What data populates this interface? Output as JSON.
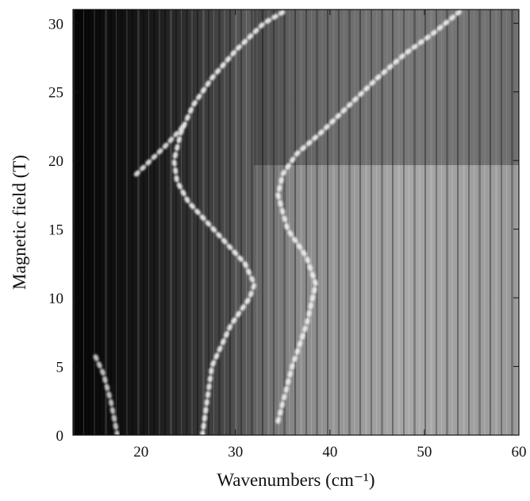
{
  "chart_data": {
    "type": "intensity-map",
    "x_label": "Wavenumbers (cm⁻¹)",
    "y_label": "Magnetic field (T)",
    "xlim": [
      12.8,
      60
    ],
    "xticks": [
      20,
      30,
      40,
      50,
      60
    ],
    "ylim": [
      0,
      31
    ],
    "yticks": [
      0,
      5,
      10,
      15,
      20,
      25,
      30
    ],
    "series": [
      {
        "color": "#f2f2f2",
        "x": [
          26.5,
          27.5,
          29.5,
          31.5,
          32,
          31,
          29,
          27,
          25,
          23.8,
          23.5,
          24.2,
          25.5,
          27.5,
          30,
          33,
          35.5
        ],
        "y": [
          0,
          5,
          8,
          10,
          11,
          12.5,
          14,
          15.5,
          17,
          18.5,
          20,
          22,
          24,
          26,
          28,
          30,
          31
        ]
      },
      {
        "color": "#f2f2f2",
        "x": [
          34.5,
          36,
          37.5,
          38.5,
          37.5,
          35.5,
          34.5,
          35,
          36.5,
          39,
          42,
          45,
          48,
          51,
          54
        ],
        "y": [
          1,
          5,
          8,
          11,
          13,
          15,
          17.5,
          19,
          20.5,
          22,
          24,
          26,
          27.8,
          29.3,
          31
        ]
      },
      {
        "color": "#e6e6e6",
        "x": [
          19.5,
          21,
          22.5,
          24.5
        ],
        "y": [
          19,
          20,
          21,
          22.5
        ]
      },
      {
        "color": "#d0d0d0",
        "x": [
          17.5,
          16.8,
          16,
          15
        ],
        "y": [
          0,
          2.5,
          4.5,
          6
        ]
      }
    ]
  }
}
